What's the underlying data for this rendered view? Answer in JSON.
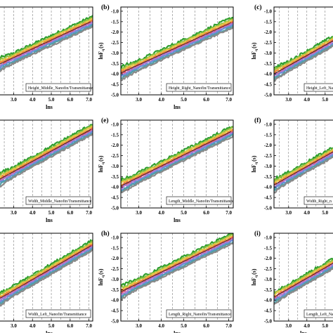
{
  "figure": {
    "panels": [
      {
        "label": "",
        "legend": "Height_Middle_Nanofin/Transmittance",
        "ylabel": "",
        "xlabel": "lns"
      },
      {
        "label": "(b)",
        "legend": "Height_Right_Nanofin/Transmittance",
        "ylabel": "lnF",
        "ylabel_sub": "q",
        "ylabel_arg": "(s)",
        "xlabel": "lns"
      },
      {
        "label": "(c)",
        "legend": "Height_Left_Na",
        "ylabel": "lnF",
        "ylabel_sub": "q",
        "ylabel_arg": "(s)",
        "xlabel": ""
      },
      {
        "label": "",
        "legend": "Width_Middle_Nanofin/Transmittance",
        "ylabel": "",
        "xlabel": "lns"
      },
      {
        "label": "(e)",
        "legend": "Length_Middle_Nanofin/Transmittance",
        "ylabel": "lnF",
        "ylabel_sub": "q",
        "ylabel_arg": "(s)",
        "xlabel": "lns"
      },
      {
        "label": "(f)",
        "legend": "Width_Right_n",
        "ylabel": "lnF",
        "ylabel_sub": "q",
        "ylabel_arg": "(s)",
        "xlabel": ""
      },
      {
        "label": "",
        "legend": "Width_Left_Nanofin/Transmittance",
        "ylabel": "",
        "xlabel": "lns"
      },
      {
        "label": "(h)",
        "legend": "Length_Right_Nanofin/Transmittance",
        "ylabel": "lnF",
        "ylabel_sub": "q",
        "ylabel_arg": "(s)",
        "xlabel": "lns"
      },
      {
        "label": "(i)",
        "legend": "Length_Left_Na",
        "ylabel": "lnF",
        "ylabel_sub": "q",
        "ylabel_arg": "(s)",
        "xlabel": "lns"
      }
    ]
  },
  "chart_data": {
    "type": "line",
    "x_ticks": [
      "3.0",
      "4.0",
      "5.0",
      "6.0",
      "7.0"
    ],
    "y_ticks": [
      "-1.0",
      "-1.5",
      "-2.0",
      "-2.5",
      "-3.0",
      "-3.5",
      "-4.0",
      "-4.5",
      "-5.0"
    ],
    "xlim": [
      2.2,
      7.2
    ],
    "ylim": [
      -5.0,
      -0.8
    ],
    "grid": "vertical dashed",
    "series_colors": [
      "#2e9e2e",
      "#8fbf3f",
      "#e8c84a",
      "#f08a3c",
      "#e05060",
      "#b07ad0",
      "#6a8fd8",
      "#4fa0a8",
      "#8a8a8a"
    ],
    "fits": [
      {
        "panel": "a",
        "start": [
          2.2,
          -3.55
        ],
        "end": [
          7.1,
          -1.5
        ]
      },
      {
        "panel": "b",
        "start": [
          2.2,
          -3.95
        ],
        "end": [
          7.1,
          -1.55
        ]
      },
      {
        "panel": "c",
        "start": [
          2.2,
          -4.0
        ],
        "end": [
          7.1,
          -1.6
        ]
      },
      {
        "panel": "d",
        "start": [
          2.2,
          -3.65
        ],
        "end": [
          7.1,
          -1.25
        ]
      },
      {
        "panel": "e",
        "start": [
          2.2,
          -3.95
        ],
        "end": [
          7.1,
          -1.35
        ]
      },
      {
        "panel": "f",
        "start": [
          2.2,
          -3.9
        ],
        "end": [
          7.1,
          -1.5
        ]
      },
      {
        "panel": "g",
        "start": [
          2.2,
          -3.95
        ],
        "end": [
          7.1,
          -1.4
        ]
      },
      {
        "panel": "h",
        "start": [
          2.2,
          -3.6
        ],
        "end": [
          7.1,
          -1.05
        ]
      },
      {
        "panel": "i",
        "start": [
          2.2,
          -3.85
        ],
        "end": [
          7.1,
          -1.4
        ]
      }
    ]
  }
}
